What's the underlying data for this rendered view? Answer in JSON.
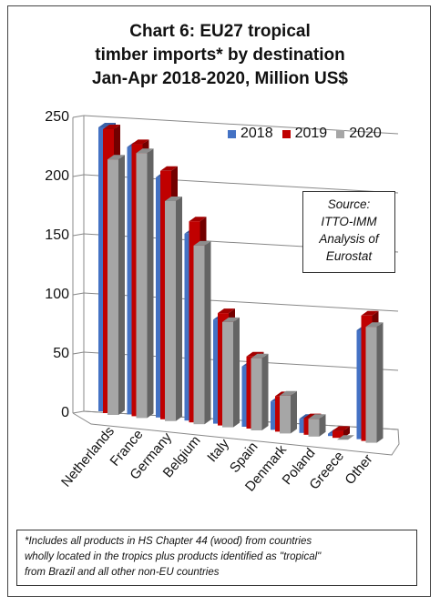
{
  "title_lines": [
    "Chart 6: EU27 tropical",
    "timber imports* by destination",
    "Jan-Apr 2018-2020, Million US$"
  ],
  "source_lines": [
    "Source:",
    "ITTO-IMM",
    "Analysis of",
    "Eurostat"
  ],
  "footnote_lines": [
    "*Includes all products in HS Chapter 44 (wood) from countries",
    "wholly located in the tropics plus products identified as \"tropical\"",
    "from Brazil and all other non-EU countries"
  ],
  "chart_data": {
    "type": "bar",
    "style": "3d-clustered",
    "categories": [
      "Netherlands",
      "France",
      "Germany",
      "Belgium",
      "Italy",
      "Spain",
      "Denmark",
      "Poland",
      "Greece",
      "Other"
    ],
    "series": [
      {
        "name": "2018",
        "color": "#4472c4",
        "values": [
          240,
          226,
          203,
          158,
          88,
          51,
          24,
          12,
          2,
          92
        ]
      },
      {
        "name": "2019",
        "color": "#c00000",
        "values": [
          240,
          230,
          210,
          170,
          95,
          61,
          30,
          14,
          6,
          106
        ]
      },
      {
        "name": "2020",
        "color": "#a6a6a6",
        "values": [
          216,
          224,
          186,
          151,
          89,
          61,
          32,
          15,
          0,
          98
        ]
      }
    ],
    "ylim": [
      0,
      250
    ],
    "yticks": [
      0,
      50,
      100,
      150,
      200,
      250
    ],
    "legend_position": "top-right",
    "grid": true
  }
}
